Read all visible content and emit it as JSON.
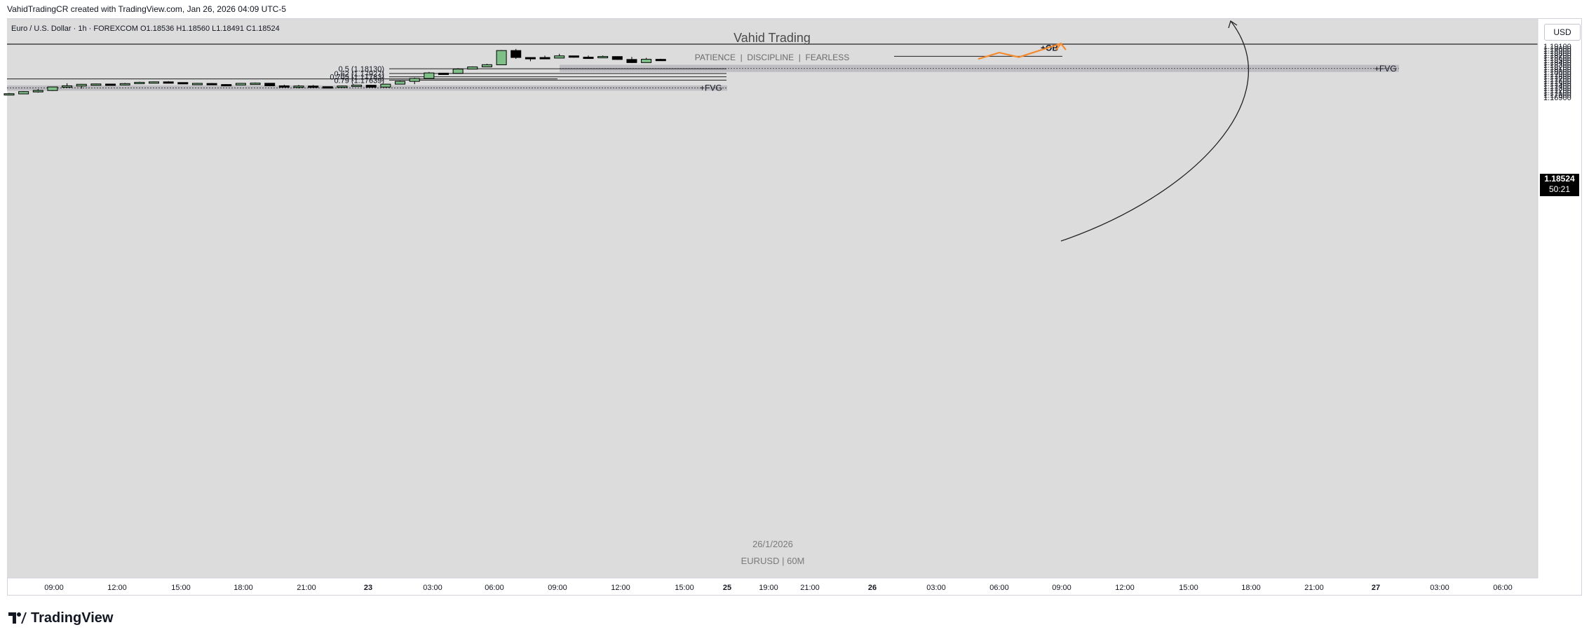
{
  "header": {
    "creator_line": "VahidTradingCR created with TradingView.com, Jan 26, 2026 04:09 UTC-5"
  },
  "symbol_bar": {
    "text": "Euro / U.S. Dollar · 1h · FOREXCOM   O1.18536  H1.18560  L1.18491  C1.18524"
  },
  "watermark": {
    "title": "Vahid Trading",
    "subtitle": "PATIENCE  |  DISCIPLINE  |  FEARLESS",
    "date": "26/1/2026",
    "symbol": "EURUSD | 60M"
  },
  "currency_button": "USD",
  "price_badge": {
    "price": "1.18524",
    "countdown": "50:21"
  },
  "brand": {
    "name": "TradingView"
  },
  "colors": {
    "bull": "#7fbf88",
    "bear": "#000000",
    "zone": "#b8b9bd",
    "arrow": "#f58a2e",
    "plot_bg": "#dcdcdc"
  },
  "chart_data": {
    "type": "candlestick",
    "symbol": "EURUSD",
    "timeframe": "1h",
    "ylim": [
      1.1685,
      1.1924
    ],
    "price_ticks": [
      "1.19100",
      "1.19000",
      "1.18900",
      "1.18800",
      "1.18700",
      "1.18600",
      "1.18500",
      "1.18400",
      "1.18300",
      "1.18200",
      "1.18100",
      "1.18000",
      "1.17900",
      "1.17800",
      "1.17700",
      "1.17600",
      "1.17500",
      "1.17400",
      "1.17300",
      "1.17200",
      "1.17100",
      "1.17000",
      "1.16900"
    ],
    "time_labels": [
      "09:00",
      "12:00",
      "15:00",
      "18:00",
      "21:00",
      "23",
      "03:00",
      "06:00",
      "09:00",
      "12:00",
      "15:00",
      "25",
      "19:00",
      "21:00",
      "26",
      "03:00",
      "06:00",
      "09:00",
      "12:00",
      "15:00",
      "18:00",
      "21:00",
      "27",
      "03:00",
      "06:00"
    ],
    "candles": [
      {
        "o": 1.17035,
        "h": 1.17085,
        "l": 1.17005,
        "c": 1.17055
      },
      {
        "o": 1.17045,
        "h": 1.17165,
        "l": 1.17035,
        "c": 1.17145
      },
      {
        "o": 1.1713,
        "h": 1.17255,
        "l": 1.171,
        "c": 1.17195
      },
      {
        "o": 1.1719,
        "h": 1.1736,
        "l": 1.1717,
        "c": 1.17345
      },
      {
        "o": 1.1734,
        "h": 1.17505,
        "l": 1.1733,
        "c": 1.17395
      },
      {
        "o": 1.17385,
        "h": 1.17475,
        "l": 1.17275,
        "c": 1.1746
      },
      {
        "o": 1.1746,
        "h": 1.1749,
        "l": 1.1743,
        "c": 1.17475
      },
      {
        "o": 1.1747,
        "h": 1.17485,
        "l": 1.17415,
        "c": 1.17435
      },
      {
        "o": 1.17435,
        "h": 1.1752,
        "l": 1.17415,
        "c": 1.1749
      },
      {
        "o": 1.1749,
        "h": 1.1757,
        "l": 1.17475,
        "c": 1.17545
      },
      {
        "o": 1.1755,
        "h": 1.1758,
        "l": 1.1752,
        "c": 1.17565
      },
      {
        "o": 1.17565,
        "h": 1.17595,
        "l": 1.1753,
        "c": 1.17545
      },
      {
        "o": 1.17535,
        "h": 1.1754,
        "l": 1.17475,
        "c": 1.17485
      },
      {
        "o": 1.17485,
        "h": 1.1752,
        "l": 1.1747,
        "c": 1.175
      },
      {
        "o": 1.17495,
        "h": 1.17515,
        "l": 1.1744,
        "c": 1.17455
      },
      {
        "o": 1.1745,
        "h": 1.17465,
        "l": 1.17425,
        "c": 1.1743
      },
      {
        "o": 1.1743,
        "h": 1.17505,
        "l": 1.17425,
        "c": 1.175
      },
      {
        "o": 1.175,
        "h": 1.17535,
        "l": 1.1749,
        "c": 1.1751
      },
      {
        "o": 1.17505,
        "h": 1.17515,
        "l": 1.17375,
        "c": 1.17395
      },
      {
        "o": 1.17395,
        "h": 1.1744,
        "l": 1.1734,
        "c": 1.1735
      },
      {
        "o": 1.17355,
        "h": 1.1743,
        "l": 1.17285,
        "c": 1.17385
      },
      {
        "o": 1.17385,
        "h": 1.1743,
        "l": 1.17345,
        "c": 1.17345
      },
      {
        "o": 1.17355,
        "h": 1.17365,
        "l": 1.17295,
        "c": 1.1735
      },
      {
        "o": 1.1735,
        "h": 1.17405,
        "l": 1.1731,
        "c": 1.17385
      },
      {
        "o": 1.17385,
        "h": 1.1744,
        "l": 1.17375,
        "c": 1.17425
      },
      {
        "o": 1.1742,
        "h": 1.1743,
        "l": 1.1733,
        "c": 1.17335
      },
      {
        "o": 1.1734,
        "h": 1.1748,
        "l": 1.1732,
        "c": 1.17465
      },
      {
        "o": 1.17465,
        "h": 1.1761,
        "l": 1.17455,
        "c": 1.17585
      },
      {
        "o": 1.17585,
        "h": 1.17745,
        "l": 1.17465,
        "c": 1.1771
      },
      {
        "o": 1.1771,
        "h": 1.1799,
        "l": 1.177,
        "c": 1.1795
      },
      {
        "o": 1.1794,
        "h": 1.1795,
        "l": 1.17915,
        "c": 1.17925
      },
      {
        "o": 1.1793,
        "h": 1.18155,
        "l": 1.1792,
        "c": 1.18115
      },
      {
        "o": 1.18115,
        "h": 1.1823,
        "l": 1.1811,
        "c": 1.1821
      },
      {
        "o": 1.1821,
        "h": 1.18345,
        "l": 1.182,
        "c": 1.18305
      },
      {
        "o": 1.183,
        "h": 1.18935,
        "l": 1.183,
        "c": 1.18915
      },
      {
        "o": 1.18915,
        "h": 1.18985,
        "l": 1.18555,
        "c": 1.18615
      },
      {
        "o": 1.18615,
        "h": 1.18625,
        "l": 1.18455,
        "c": 1.1861
      },
      {
        "o": 1.18615,
        "h": 1.18695,
        "l": 1.18575,
        "c": 1.1859
      },
      {
        "o": 1.1859,
        "h": 1.18775,
        "l": 1.18575,
        "c": 1.18685
      },
      {
        "o": 1.18685,
        "h": 1.1869,
        "l": 1.18605,
        "c": 1.18625
      },
      {
        "o": 1.1863,
        "h": 1.187,
        "l": 1.18575,
        "c": 1.186
      },
      {
        "o": 1.186,
        "h": 1.187,
        "l": 1.1859,
        "c": 1.1866
      },
      {
        "o": 1.18655,
        "h": 1.18665,
        "l": 1.18515,
        "c": 1.1853
      },
      {
        "o": 1.1853,
        "h": 1.1864,
        "l": 1.18375,
        "c": 1.18395
      },
      {
        "o": 1.18395,
        "h": 1.186,
        "l": 1.1839,
        "c": 1.1854
      },
      {
        "o": 1.18536,
        "h": 1.1856,
        "l": 1.18491,
        "c": 1.18524
      }
    ],
    "zones": [
      {
        "label": "+FVG",
        "top": 1.183,
        "bottom": 1.1799,
        "mid": 1.1814
      },
      {
        "label": "+FVG",
        "top": 1.1741,
        "bottom": 1.17185,
        "mid": 1.173
      }
    ],
    "fib_levels": [
      {
        "label": "0.5 (1.18130)",
        "value": 1.1813
      },
      {
        "label": "0.62 (1.17927)",
        "value": 1.17927
      },
      {
        "label": "0.705 (1.17783)",
        "value": 1.17783
      },
      {
        "label": "0.79 (1.17639)",
        "value": 1.17639
      }
    ],
    "order_block": {
      "label": "+OB",
      "value": 1.18665
    },
    "horizontal_lines": [
      1.1919,
      1.1769
    ],
    "projection_path": [
      1.1855,
      1.18825,
      1.1863,
      1.19215
    ]
  }
}
